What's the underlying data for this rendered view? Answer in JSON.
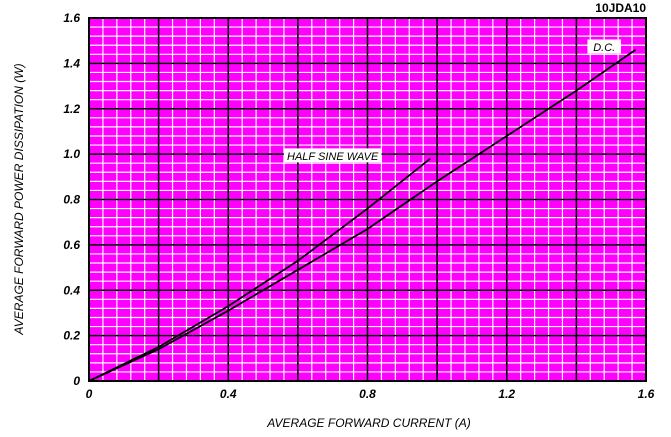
{
  "chart_data": {
    "type": "line",
    "part_number": "10JDA10",
    "xlabel": "AVERAGE FORWARD CURRENT (A)",
    "ylabel": "AVERAGE FORWARD POWER DISSIPATION (W)",
    "xlim": [
      0,
      1.6
    ],
    "ylim": [
      0,
      1.6
    ],
    "x_ticks": [
      "0",
      "0.4",
      "0.8",
      "1.2",
      "1.6"
    ],
    "y_ticks": [
      "0",
      "0.2",
      "0.4",
      "0.6",
      "0.8",
      "1.0",
      "1.2",
      "1.4",
      "1.6"
    ],
    "grid": true,
    "background_color": "#ff00ff",
    "grid_color": "#ffffff",
    "major_grid_color": "#000000",
    "series": [
      {
        "name": "HALF SINE WAVE",
        "x": [
          0,
          0.2,
          0.4,
          0.6,
          0.8,
          0.98
        ],
        "y": [
          0,
          0.15,
          0.33,
          0.53,
          0.76,
          0.98
        ]
      },
      {
        "name": "D.C.",
        "x": [
          0,
          0.2,
          0.4,
          0.6,
          0.8,
          1.0,
          1.2,
          1.4,
          1.57
        ],
        "y": [
          0,
          0.14,
          0.31,
          0.49,
          0.67,
          0.88,
          1.08,
          1.28,
          1.46
        ]
      }
    ],
    "annotations": [
      {
        "text": "HALF SINE WAVE",
        "x": 0.7,
        "y": 0.99
      },
      {
        "text": "D.C.",
        "x": 1.48,
        "y": 1.47
      }
    ]
  }
}
